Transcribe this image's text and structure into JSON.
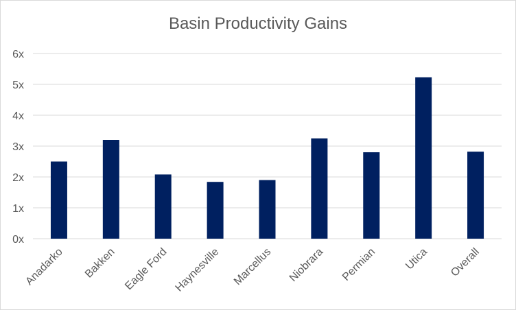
{
  "chart_data": {
    "type": "bar",
    "title": "Basin Productivity Gains",
    "xlabel": "",
    "ylabel": "",
    "categories": [
      "Anadarko",
      "Bakken",
      "Eagle Ford",
      "Haynesville",
      "Marcellus",
      "Niobrara",
      "Permian",
      "Utica",
      "Overall"
    ],
    "values": [
      2.5,
      3.2,
      2.08,
      1.84,
      1.9,
      3.25,
      2.8,
      5.23,
      2.82
    ],
    "ylim": [
      0,
      6
    ],
    "yticks": [
      "0x",
      "1x",
      "2x",
      "3x",
      "4x",
      "5x",
      "6x"
    ],
    "grid": true,
    "legend": "none",
    "bar_color": "#002060",
    "grid_color": "#d9d9d9"
  }
}
